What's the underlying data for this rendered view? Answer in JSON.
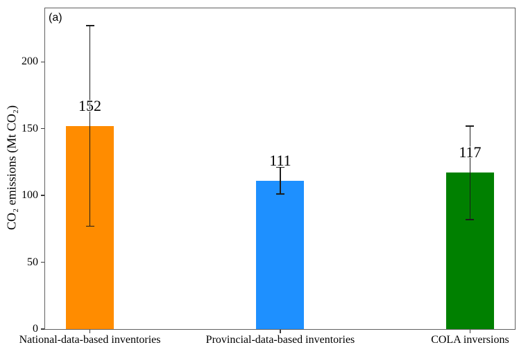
{
  "figure": {
    "background": "#ffffff"
  },
  "chart_data": {
    "type": "bar",
    "panel_label": "(a)",
    "title": "",
    "xlabel": "",
    "ylabel": "CO₂ emissions (Mt CO₂)",
    "ylim": [
      0,
      240
    ],
    "yticks": [
      0,
      50,
      100,
      150,
      200
    ],
    "grid": false,
    "legend": "none",
    "categories": [
      "National-data-based inventories",
      "Provincial-data-based inventories",
      "COLA inversions"
    ],
    "values": [
      152,
      111,
      117
    ],
    "error_plus": [
      75,
      10,
      35
    ],
    "error_minus": [
      75,
      10,
      35
    ],
    "bar_colors": [
      "#FF8C00",
      "#1E90FF",
      "#008000"
    ],
    "error_bar_color": "#1c1c1c",
    "axis_color": "#5f5f5f",
    "text_color": "#000000"
  }
}
